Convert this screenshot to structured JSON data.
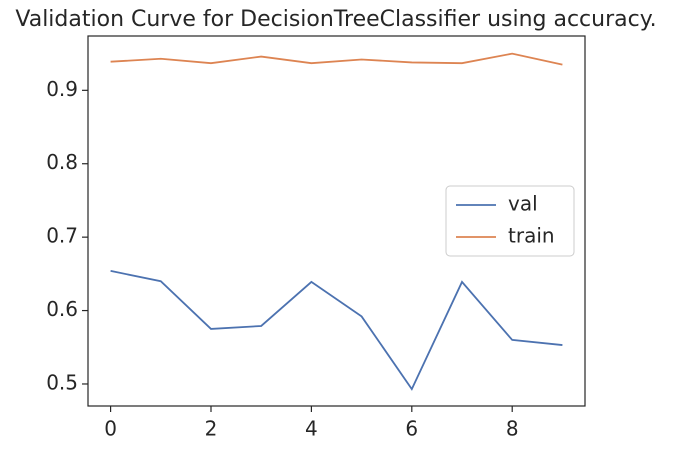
{
  "chart_data": {
    "type": "line",
    "title": "Validation Curve for DecisionTreeClassifier using accuracy.",
    "x": [
      0,
      1,
      2,
      3,
      4,
      5,
      6,
      7,
      8,
      9
    ],
    "series": [
      {
        "name": "val",
        "color": "#4c72b0",
        "values": [
          0.654,
          0.64,
          0.575,
          0.579,
          0.639,
          0.592,
          0.493,
          0.639,
          0.56,
          0.553
        ]
      },
      {
        "name": "train",
        "color": "#dd8452",
        "values": [
          0.939,
          0.943,
          0.937,
          0.946,
          0.937,
          0.942,
          0.938,
          0.937,
          0.95,
          0.935
        ]
      }
    ],
    "xlim": [
      -0.45,
      9.45
    ],
    "xticks": [
      0,
      2,
      4,
      6,
      8
    ],
    "ylim": [
      0.47,
      0.974
    ],
    "yticks": [
      0.5,
      0.6,
      0.7,
      0.8,
      0.9
    ],
    "grid": false,
    "legend": "center right"
  }
}
